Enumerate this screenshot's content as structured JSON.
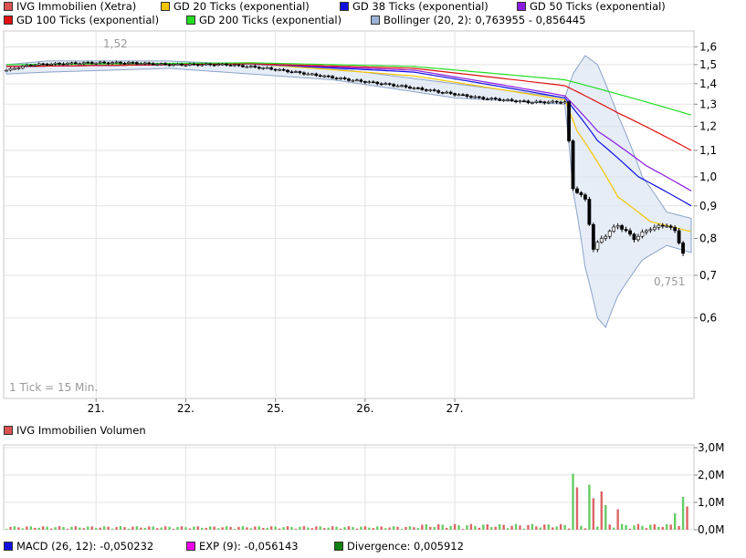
{
  "legend_top": [
    {
      "label": "IVG Immobilien (Xetra)",
      "color": "#d9534f"
    },
    {
      "label": "GD 20 Ticks (exponential)",
      "color": "#f5c400"
    },
    {
      "label": "GD 38 Ticks (exponential)",
      "color": "#1010e0"
    },
    {
      "label": "GD 50 Ticks (exponential)",
      "color": "#8a1be0"
    },
    {
      "label": "GD 100 Ticks (exponential)",
      "color": "#e01010"
    },
    {
      "label": "GD 200 Ticks (exponential)",
      "color": "#22dd22"
    },
    {
      "label": "Bollinger (20, 2): 0,763955 - 0,856445",
      "color": "#9bb3d6"
    }
  ],
  "legend_volume": {
    "label": "IVG Immobilien Volumen",
    "color": "#d9534f"
  },
  "legend_bottom": [
    {
      "label": "MACD (26, 12): -0,050232",
      "color": "#1010e0"
    },
    {
      "label": "EXP (9): -0,056143",
      "color": "#ee00ee"
    },
    {
      "label": "Divergence: 0,005912",
      "color": "#108010"
    }
  ],
  "price_chart": {
    "tick_note": "1 Tick = 15 Min.",
    "high_label": "1,52",
    "low_label": "0,751",
    "y_ticks": [
      {
        "value": 1.6,
        "label": "1,6"
      },
      {
        "value": 1.5,
        "label": "1,5"
      },
      {
        "value": 1.4,
        "label": "1,4"
      },
      {
        "value": 1.3,
        "label": "1,3"
      },
      {
        "value": 1.2,
        "label": "1,2"
      },
      {
        "value": 1.1,
        "label": "1,1"
      },
      {
        "value": 1.0,
        "label": "1,0"
      },
      {
        "value": 0.9,
        "label": "0,9"
      },
      {
        "value": 0.8,
        "label": "0,8"
      },
      {
        "value": 0.7,
        "label": "0,7"
      },
      {
        "value": 0.6,
        "label": "0,6"
      }
    ],
    "x_labels": [
      "21.",
      "22.",
      "25.",
      "26.",
      "27."
    ]
  },
  "volume_chart": {
    "y_ticks": [
      {
        "value": 3.0,
        "label": "3,0M"
      },
      {
        "value": 2.0,
        "label": "2,0M"
      },
      {
        "value": 1.0,
        "label": "1,0M"
      },
      {
        "value": 0.0,
        "label": "0,0M"
      }
    ]
  },
  "chart_data": {
    "type": "candlestick",
    "title": "IVG Immobilien (Xetra)",
    "interval": "15 Min.",
    "x_categories": [
      "21.",
      "22.",
      "25.",
      "26.",
      "27."
    ],
    "close_series_anchors": [
      {
        "x": 0,
        "close": 1.47
      },
      {
        "x": 6,
        "close": 1.5
      },
      {
        "x": 20,
        "close": 1.51
      },
      {
        "x": 30,
        "close": 1.51
      },
      {
        "x": 40,
        "close": 1.5
      },
      {
        "x": 54,
        "close": 1.5
      },
      {
        "x": 64,
        "close": 1.48
      },
      {
        "x": 74,
        "close": 1.45
      },
      {
        "x": 84,
        "close": 1.42
      },
      {
        "x": 96,
        "close": 1.39
      },
      {
        "x": 106,
        "close": 1.36
      },
      {
        "x": 116,
        "close": 1.33
      },
      {
        "x": 128,
        "close": 1.31
      },
      {
        "x": 137,
        "close": 1.31
      },
      {
        "x": 139,
        "close": 0.96
      },
      {
        "x": 142,
        "close": 0.92
      },
      {
        "x": 144,
        "close": 0.77
      },
      {
        "x": 146,
        "close": 0.8
      },
      {
        "x": 150,
        "close": 0.84
      },
      {
        "x": 154,
        "close": 0.8
      },
      {
        "x": 158,
        "close": 0.83
      },
      {
        "x": 162,
        "close": 0.84
      },
      {
        "x": 164,
        "close": 0.82
      },
      {
        "x": 166,
        "close": 0.76
      }
    ],
    "moving_averages": [
      {
        "name": "GD 20 Ticks (exponential)",
        "color": "#f5c400",
        "points": [
          [
            0,
            1.49
          ],
          [
            60,
            1.505
          ],
          [
            100,
            1.44
          ],
          [
            137,
            1.32
          ],
          [
            140,
            1.18
          ],
          [
            150,
            0.93
          ],
          [
            158,
            0.85
          ],
          [
            168,
            0.82
          ]
        ]
      },
      {
        "name": "GD 38 Ticks (exponential)",
        "color": "#1010e0",
        "points": [
          [
            0,
            1.49
          ],
          [
            60,
            1.505
          ],
          [
            100,
            1.46
          ],
          [
            137,
            1.33
          ],
          [
            145,
            1.14
          ],
          [
            155,
            1.0
          ],
          [
            168,
            0.9
          ]
        ]
      },
      {
        "name": "GD 50 Ticks (exponential)",
        "color": "#8a1be0",
        "points": [
          [
            0,
            1.49
          ],
          [
            60,
            1.505
          ],
          [
            100,
            1.47
          ],
          [
            137,
            1.34
          ],
          [
            145,
            1.18
          ],
          [
            157,
            1.04
          ],
          [
            168,
            0.95
          ]
        ]
      },
      {
        "name": "GD 100 Ticks (exponential)",
        "color": "#e01010",
        "points": [
          [
            0,
            1.49
          ],
          [
            60,
            1.505
          ],
          [
            100,
            1.48
          ],
          [
            137,
            1.39
          ],
          [
            150,
            1.26
          ],
          [
            168,
            1.1
          ]
        ]
      },
      {
        "name": "GD 200 Ticks (exponential)",
        "color": "#22dd22",
        "points": [
          [
            0,
            1.5
          ],
          [
            60,
            1.51
          ],
          [
            100,
            1.49
          ],
          [
            137,
            1.42
          ],
          [
            168,
            1.25
          ]
        ]
      }
    ],
    "bollinger": {
      "name": "Bollinger (20, 2)",
      "upper": [
        [
          0,
          1.5
        ],
        [
          10,
          1.52
        ],
        [
          40,
          1.52
        ],
        [
          80,
          1.48
        ],
        [
          110,
          1.4
        ],
        [
          137,
          1.33
        ],
        [
          139,
          1.45
        ],
        [
          142,
          1.55
        ],
        [
          145,
          1.5
        ],
        [
          150,
          1.25
        ],
        [
          156,
          1.0
        ],
        [
          162,
          0.88
        ],
        [
          168,
          0.86
        ]
      ],
      "lower": [
        [
          0,
          1.45
        ],
        [
          10,
          1.46
        ],
        [
          40,
          1.48
        ],
        [
          80,
          1.42
        ],
        [
          110,
          1.33
        ],
        [
          137,
          1.3
        ],
        [
          139,
          0.95
        ],
        [
          142,
          0.72
        ],
        [
          145,
          0.6
        ],
        [
          147,
          0.58
        ],
        [
          150,
          0.65
        ],
        [
          156,
          0.74
        ],
        [
          162,
          0.78
        ],
        [
          168,
          0.76
        ]
      ]
    },
    "volume": {
      "unit": "M",
      "ylim": [
        0,
        3.0
      ],
      "spikes": [
        {
          "x": 139,
          "v": 2.05
        },
        {
          "x": 140,
          "v": 1.55
        },
        {
          "x": 143,
          "v": 1.65
        },
        {
          "x": 144,
          "v": 1.15
        },
        {
          "x": 146,
          "v": 1.4
        },
        {
          "x": 147,
          "v": 0.9
        },
        {
          "x": 150,
          "v": 0.75
        },
        {
          "x": 164,
          "v": 0.6
        },
        {
          "x": 166,
          "v": 1.2
        },
        {
          "x": 167,
          "v": 0.85
        }
      ],
      "baseline_level": 0.1
    },
    "ylim": [
      0.5,
      1.65
    ],
    "y_scale": "log",
    "grid": true
  }
}
